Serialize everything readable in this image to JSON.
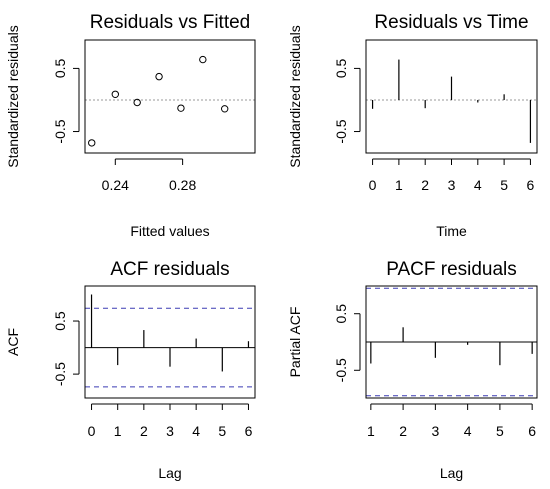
{
  "chart_data": [
    {
      "type": "scatter",
      "title": "Residuals vs Fitted",
      "xlabel": "Fitted values",
      "ylabel": "Standardized residuals",
      "xlim": [
        0.222,
        0.323
      ],
      "ylim": [
        -0.84,
        0.95
      ],
      "xticks": [
        0.24,
        0.28
      ],
      "xtick_labels": [
        "0.24",
        "0.28"
      ],
      "yticks": [
        -0.5,
        0.5
      ],
      "ytick_labels": [
        "-0.5",
        "0.5"
      ],
      "hline": 0,
      "x": [
        0.226,
        0.24,
        0.253,
        0.266,
        0.279,
        0.292,
        0.305
      ],
      "y": [
        -0.68,
        0.09,
        -0.04,
        0.37,
        -0.13,
        0.64,
        -0.14
      ]
    },
    {
      "type": "bar",
      "title": "Residuals vs Time",
      "xlabel": "Time",
      "ylabel": "Standardized residuals",
      "xlim": [
        -0.25,
        6.25
      ],
      "ylim": [
        -0.84,
        0.95
      ],
      "xticks": [
        0,
        1,
        2,
        3,
        4,
        5,
        6
      ],
      "xtick_labels": [
        "0",
        "1",
        "2",
        "3",
        "4",
        "5",
        "6"
      ],
      "yticks": [
        -0.5,
        0.5
      ],
      "ytick_labels": [
        "-0.5",
        "0.5"
      ],
      "hline": 0,
      "x": [
        0,
        1,
        2,
        3,
        4,
        5,
        6
      ],
      "values": [
        -0.14,
        0.64,
        -0.13,
        0.37,
        -0.04,
        0.09,
        -0.68
      ]
    },
    {
      "type": "bar",
      "title": "ACF residuals",
      "xlabel": "Lag",
      "ylabel": "ACF",
      "xlim": [
        -0.25,
        6.25
      ],
      "ylim": [
        -0.95,
        1.16
      ],
      "xticks": [
        0,
        1,
        2,
        3,
        4,
        5,
        6
      ],
      "xtick_labels": [
        "0",
        "1",
        "2",
        "3",
        "4",
        "5",
        "6"
      ],
      "yticks": [
        -0.5,
        0.5
      ],
      "ytick_labels": [
        "-0.5",
        "0.5"
      ],
      "hline": 0,
      "conf_limit": 0.74,
      "x": [
        0,
        1,
        2,
        3,
        4,
        5,
        6
      ],
      "values": [
        1.0,
        -0.33,
        0.33,
        -0.36,
        0.17,
        -0.45,
        0.12
      ]
    },
    {
      "type": "bar",
      "title": "PACF residuals",
      "xlabel": "Lag",
      "ylabel": "Partial ACF",
      "xlim": [
        0.85,
        6.15
      ],
      "ylim": [
        -0.99,
        0.99
      ],
      "xticks": [
        1,
        2,
        3,
        4,
        5,
        6
      ],
      "xtick_labels": [
        "1",
        "2",
        "3",
        "4",
        "5",
        "6"
      ],
      "yticks": [
        -0.5,
        0.5
      ],
      "ytick_labels": [
        "-0.5",
        "0.5"
      ],
      "hline": 0,
      "conf_limit": 0.95,
      "x": [
        1,
        2,
        3,
        4,
        5,
        6
      ],
      "values": [
        -0.38,
        0.26,
        -0.28,
        -0.05,
        -0.41,
        -0.21
      ]
    }
  ]
}
